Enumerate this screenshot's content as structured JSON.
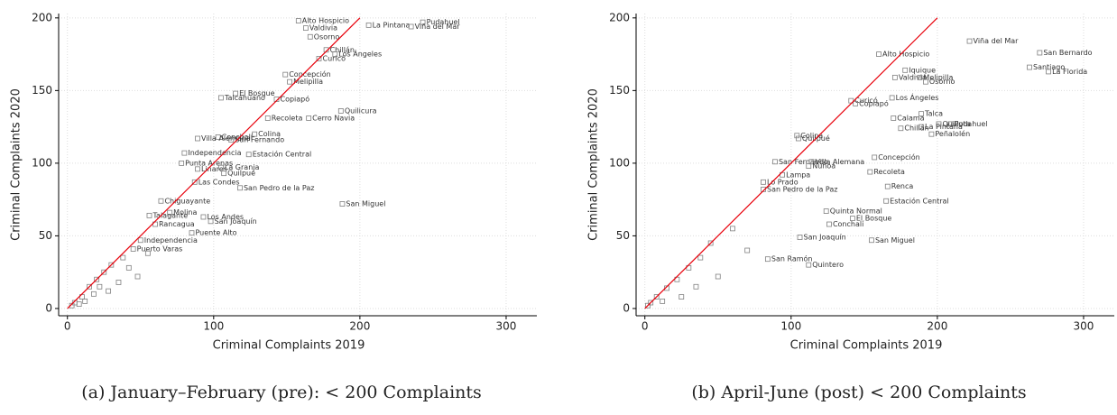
{
  "chart_data": [
    {
      "type": "scatter",
      "caption": "(a) January–February (pre): < 200 Complaints",
      "x_label": "Criminal Complaints 2019",
      "y_label": "Criminal Complaints 2020",
      "xlim": [
        -6,
        321
      ],
      "ylim": [
        -5,
        203
      ],
      "xticks": [
        0,
        100,
        200,
        300
      ],
      "yticks": [
        0,
        50,
        100,
        150,
        200
      ],
      "grid": true,
      "color": "#808080",
      "line": {
        "x": [
          0,
          200
        ],
        "y": [
          0,
          200
        ],
        "color": "#e8000b"
      },
      "x": [
        158,
        163,
        166,
        206,
        243,
        235,
        177,
        183,
        172,
        149,
        152,
        115,
        105,
        143,
        187,
        137,
        165,
        128,
        103,
        89,
        112,
        80,
        124,
        78,
        89,
        105,
        107,
        87,
        188,
        118,
        64,
        70,
        98,
        60,
        56,
        93,
        85,
        50,
        45,
        38,
        30,
        25,
        20,
        15,
        10,
        5,
        3,
        35,
        42,
        28,
        18,
        12,
        8,
        55,
        48,
        22
      ],
      "y": [
        198,
        193,
        187,
        195,
        197,
        194,
        178,
        175,
        172,
        161,
        156,
        148,
        145,
        144,
        136,
        131,
        131,
        120,
        118,
        117,
        116,
        107,
        106,
        100,
        96,
        97,
        93,
        87,
        72,
        83,
        74,
        66,
        60,
        58,
        64,
        63,
        52,
        47,
        41,
        35,
        30,
        25,
        20,
        15,
        8,
        4,
        2,
        18,
        28,
        12,
        10,
        5,
        3,
        38,
        22,
        15
      ],
      "labels": [
        "Alto Hospicio",
        "Valdivia",
        "Osorno",
        "La Pintana",
        "Pudahuel",
        "Viña del Mar",
        "Chillán",
        "Los Ángeles",
        "Curicó",
        "Concepción",
        "Melipilla",
        "El Bosque",
        "Talcahuano",
        "Copiapó",
        "Quilicura",
        "Recoleta",
        "Cerro Navia",
        "Colina",
        "Conchalí",
        "Villa Alemana",
        "San Fernando",
        "Independencia",
        "Estación Central",
        "Punta Arenas",
        "Linares",
        "La Granja",
        "Quilpué",
        "Las Condes",
        "San Miguel",
        "San Pedro de la Paz",
        "Chiguayante",
        "Molina",
        "San Joaquín",
        "Rancagua",
        "Talagante",
        "Los Andes",
        "Puente Alto",
        "Independencia",
        "Puerto Varas",
        null,
        null,
        null,
        null,
        null,
        null,
        null,
        null,
        null,
        null,
        null,
        null,
        null,
        null,
        null,
        null,
        null
      ]
    },
    {
      "type": "scatter",
      "caption": "(b) April-June (post) < 200 Complaints",
      "x_label": "Criminal Complaints 2019",
      "y_label": "Criminal Complaints 2020",
      "xlim": [
        -6,
        321
      ],
      "ylim": [
        -5,
        203
      ],
      "xticks": [
        0,
        100,
        200,
        300
      ],
      "yticks": [
        0,
        50,
        100,
        150,
        200
      ],
      "grid": true,
      "color": "#808080",
      "line": {
        "x": [
          0,
          200
        ],
        "y": [
          0,
          200
        ],
        "color": "#e8000b"
      },
      "x": [
        222,
        270,
        263,
        276,
        160,
        178,
        171,
        188,
        192,
        169,
        141,
        144,
        189,
        170,
        201,
        209,
        189,
        175,
        196,
        104,
        105,
        157,
        89,
        114,
        112,
        154,
        94,
        81,
        166,
        81,
        165,
        155,
        124,
        142,
        126,
        106,
        112,
        84,
        60,
        45,
        38,
        30,
        22,
        15,
        8,
        4,
        2,
        50,
        35,
        25,
        12,
        70
      ],
      "y": [
        184,
        176,
        166,
        163,
        175,
        164,
        159,
        159,
        156,
        145,
        143,
        141,
        134,
        131,
        127,
        127,
        125,
        124,
        120,
        119,
        117,
        104,
        101,
        101,
        98,
        94,
        92,
        87,
        84,
        82,
        74,
        47,
        67,
        62,
        58,
        49,
        30,
        34,
        55,
        45,
        35,
        28,
        20,
        14,
        8,
        4,
        2,
        22,
        15,
        8,
        5,
        40
      ],
      "labels": [
        "Viña del Mar",
        "San Bernardo",
        "Santiago",
        "La Florida",
        "Alto Hospicio",
        "Iquique",
        "Valdivia",
        "Melipilla",
        "Osorno",
        "Los Ángeles",
        "Curicó",
        "Copiapó",
        "Talca",
        "Calama",
        "Quillota",
        "Pudahuel",
        "La Pintana",
        "Chillán",
        "Peñalolén",
        "Colina",
        "Quilpué",
        "Concepción",
        "San Fernando",
        "Villa Alemana",
        "Ñuñoa",
        "Recoleta",
        "Lampa",
        "Lo Prado",
        "Renca",
        "San Pedro de la Paz",
        "Estación Central",
        "San Miguel",
        "Quinta Normal",
        "El Bosque",
        "Conchalí",
        "San Joaquín",
        "Quintero",
        "San Ramón",
        null,
        null,
        null,
        null,
        null,
        null,
        null,
        null,
        null,
        null,
        null,
        null,
        null,
        null
      ]
    }
  ]
}
